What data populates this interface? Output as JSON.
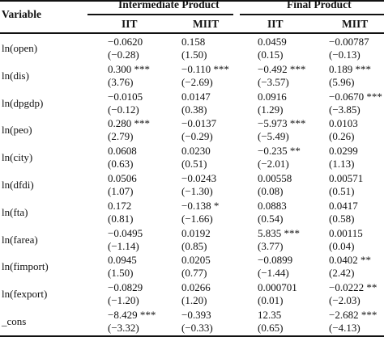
{
  "header": {
    "variable_label": "Variable",
    "group1": "Intermediate Product",
    "group2": "Final Product",
    "sub": [
      "IIT",
      "MIIT",
      "IIT",
      "MIIT"
    ]
  },
  "rows": [
    {
      "name": "ln(open)",
      "coef": [
        "−0.0620",
        "0.158",
        "0.0459",
        "−0.00787"
      ],
      "t": [
        "(−0.28)",
        "(1.50)",
        "(0.15)",
        "(−0.13)"
      ]
    },
    {
      "name": "ln(dis)",
      "coef": [
        "0.300 ***",
        "−0.110 ***",
        "−0.492 ***",
        "0.189 ***"
      ],
      "t": [
        "(3.76)",
        "(−2.69)",
        "(−3.57)",
        "(5.96)"
      ]
    },
    {
      "name": "ln(dpgdp)",
      "coef": [
        "−0.0105",
        "0.0147",
        "0.0916",
        "−0.0670 ***"
      ],
      "t": [
        "(−0.12)",
        "(0.38)",
        "(1.29)",
        "(−3.85)"
      ]
    },
    {
      "name": "ln(peo)",
      "coef": [
        "0.280 ***",
        "−0.0137",
        "−5.973 ***",
        "0.0103"
      ],
      "t": [
        "(2.79)",
        "(−0.29)",
        "(−5.49)",
        "(0.26)"
      ]
    },
    {
      "name": "ln(city)",
      "coef": [
        "0.0608",
        "0.0230",
        "−0.235 **",
        "0.0299"
      ],
      "t": [
        "(0.63)",
        "(0.51)",
        "(−2.01)",
        "(1.13)"
      ]
    },
    {
      "name": "ln(dfdi)",
      "coef": [
        "0.0506",
        "−0.0243",
        "0.00558",
        "0.00571"
      ],
      "t": [
        "(1.07)",
        "(−1.30)",
        "(0.08)",
        "(0.51)"
      ]
    },
    {
      "name": "ln(fta)",
      "coef": [
        "0.172",
        "−0.138 *",
        "0.0883",
        "0.0417"
      ],
      "t": [
        "(0.81)",
        "(−1.66)",
        "(0.54)",
        "(0.58)"
      ]
    },
    {
      "name": "ln(farea)",
      "coef": [
        "−0.0495",
        "0.0192",
        "5.835 ***",
        "0.00115"
      ],
      "t": [
        "(−1.14)",
        "(0.85)",
        "(3.77)",
        "(0.04)"
      ]
    },
    {
      "name": "ln(fimport)",
      "coef": [
        "0.0945",
        "0.0205",
        "−0.0899",
        "0.0402 **"
      ],
      "t": [
        "(1.50)",
        "(0.77)",
        "(−1.44)",
        "(2.42)"
      ]
    },
    {
      "name": "ln(fexport)",
      "coef": [
        "−0.0829",
        "0.0266",
        "0.000701",
        "−0.0222 **"
      ],
      "t": [
        "(−1.20)",
        "(1.20)",
        "(0.01)",
        "(−2.03)"
      ]
    },
    {
      "name": "_cons",
      "coef": [
        "−8.429 ***",
        "−0.393",
        "12.35",
        "−2.682 ***"
      ],
      "t": [
        "(−3.32)",
        "(−0.33)",
        "(0.65)",
        "(−4.13)"
      ]
    }
  ]
}
